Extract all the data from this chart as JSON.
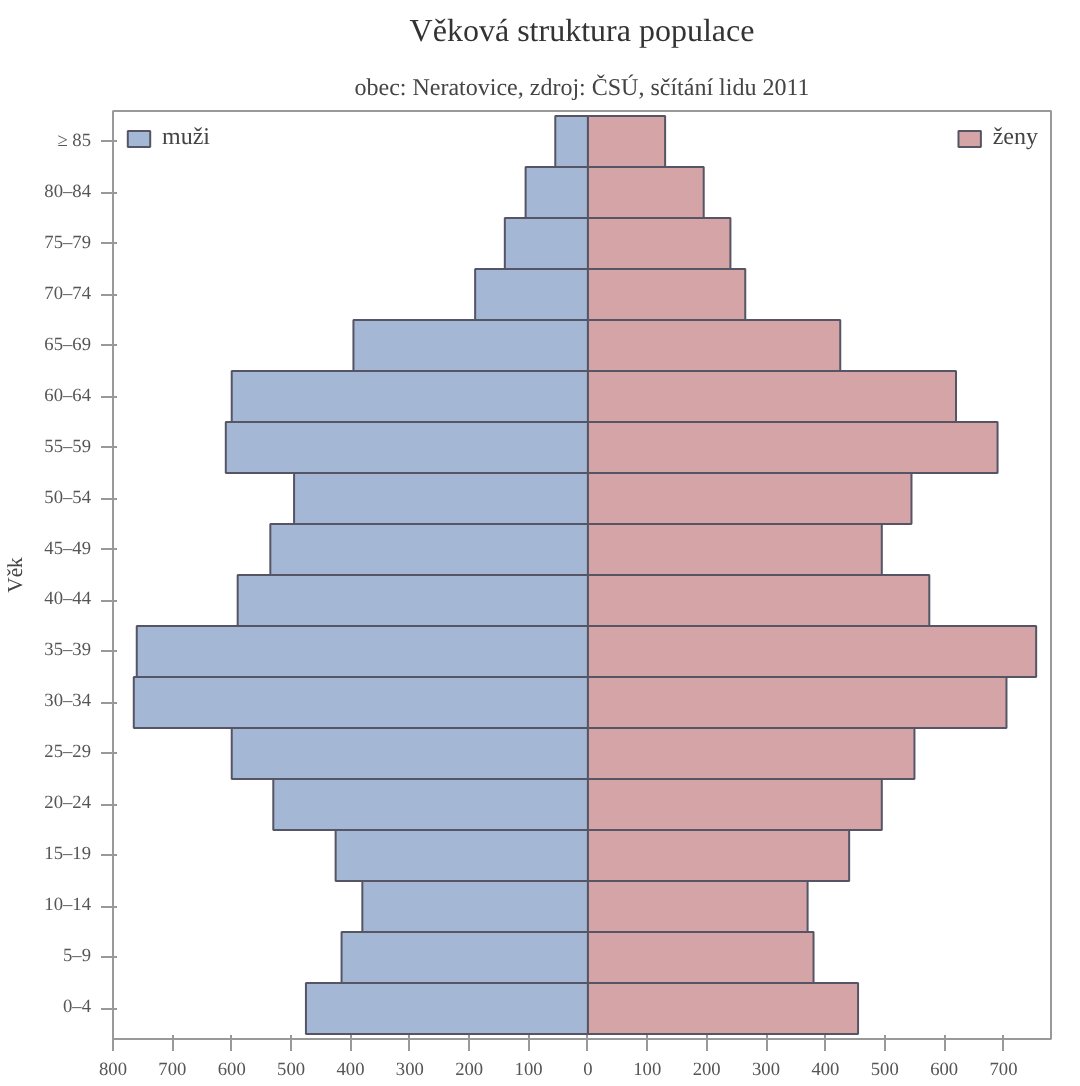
{
  "chart_data": {
    "type": "bar",
    "orientation": "horizontal",
    "title": "Věková struktura populace",
    "subtitle": "obec: Neratovice, zdroj: ČSÚ, sčítání lidu 2011",
    "ylabel": "Věk",
    "categories": [
      "≥ 85",
      "80–84",
      "75–79",
      "70–74",
      "65–69",
      "60–64",
      "55–59",
      "50–54",
      "45–49",
      "40–44",
      "35–39",
      "30–34",
      "25–29",
      "20–24",
      "15–19",
      "10–14",
      "5–9",
      "0–4"
    ],
    "series": [
      {
        "name": "muži",
        "color": "#a4b7d4",
        "values": [
          -55,
          -105,
          -140,
          -190,
          -395,
          -600,
          -610,
          -495,
          -535,
          -590,
          -760,
          -765,
          -600,
          -530,
          -425,
          -380,
          -415,
          -475
        ]
      },
      {
        "name": "ženy",
        "color": "#d4a4a6",
        "values": [
          130,
          195,
          240,
          265,
          425,
          620,
          690,
          545,
          495,
          575,
          755,
          705,
          550,
          495,
          440,
          370,
          380,
          455
        ]
      }
    ],
    "xlim": [
      -800,
      780
    ],
    "xticks": [
      {
        "value": -800,
        "label": "800"
      },
      {
        "value": -700,
        "label": "700"
      },
      {
        "value": -600,
        "label": "600"
      },
      {
        "value": -500,
        "label": "500"
      },
      {
        "value": -400,
        "label": "400"
      },
      {
        "value": -300,
        "label": "300"
      },
      {
        "value": -200,
        "label": "200"
      },
      {
        "value": -100,
        "label": "100"
      },
      0,
      100,
      200,
      300,
      400,
      500,
      600,
      700
    ],
    "stacked": true,
    "grid": false,
    "legend": "top"
  }
}
